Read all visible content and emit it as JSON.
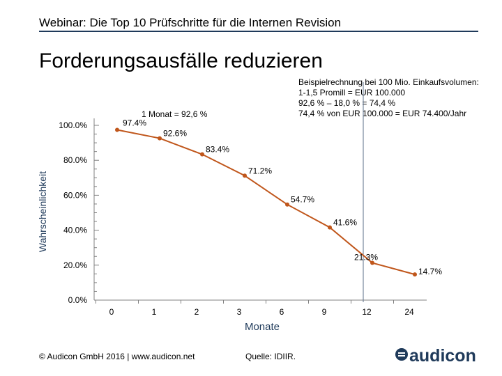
{
  "header": {
    "title": "Webinar: Die Top 10 Prüfschritte für die Internen Revision"
  },
  "slide": {
    "title": "Forderungsausfälle reduzieren",
    "example_note": "Beispielrechnung bei 100 Mio. Einkaufsvolumen:\n1-1,5 Promill = EUR 100.000\n92,6 % – 18,0 % = 74,4 %\n74,4 % von EUR 100.000 = EUR 74.400/Jahr"
  },
  "chart_data": {
    "type": "line",
    "title": "",
    "xlabel": "Monate",
    "ylabel": "Wahrscheinlichkeit",
    "categories": [
      "0",
      "1",
      "2",
      "3",
      "6",
      "9",
      "12",
      "24"
    ],
    "series": [
      {
        "name": "Wahrscheinlichkeit",
        "values": [
          97.4,
          92.6,
          83.4,
          71.2,
          54.7,
          41.6,
          21.3,
          14.7
        ],
        "labels": [
          "97.4%",
          "92.6%",
          "83.4%",
          "71.2%",
          "54.7%",
          "41.6%",
          "21.3%",
          "14.7%"
        ]
      }
    ],
    "y_ticks": [
      {
        "value": 0,
        "label": "0.0%"
      },
      {
        "value": 20,
        "label": "20.0%"
      },
      {
        "value": 40,
        "label": "40.0%"
      },
      {
        "value": 60,
        "label": "60.0%"
      },
      {
        "value": 80,
        "label": "80.0%"
      },
      {
        "value": 100,
        "label": "100.0%"
      }
    ],
    "ylim": [
      0,
      100
    ],
    "annotation": "1 Monat = 92,6 %",
    "reference_line_x": "12",
    "line_color": "#c0561b",
    "reference_line_color": "#5b6f8a"
  },
  "footer": {
    "copyright": "© Audicon GmbH 2016  |  www.audicon.net",
    "source": "Quelle: IDIIR."
  },
  "logo": {
    "wordmark": "audicon",
    "icon": "audicon-logo-icon",
    "brand_color": "#1f3a5a"
  }
}
